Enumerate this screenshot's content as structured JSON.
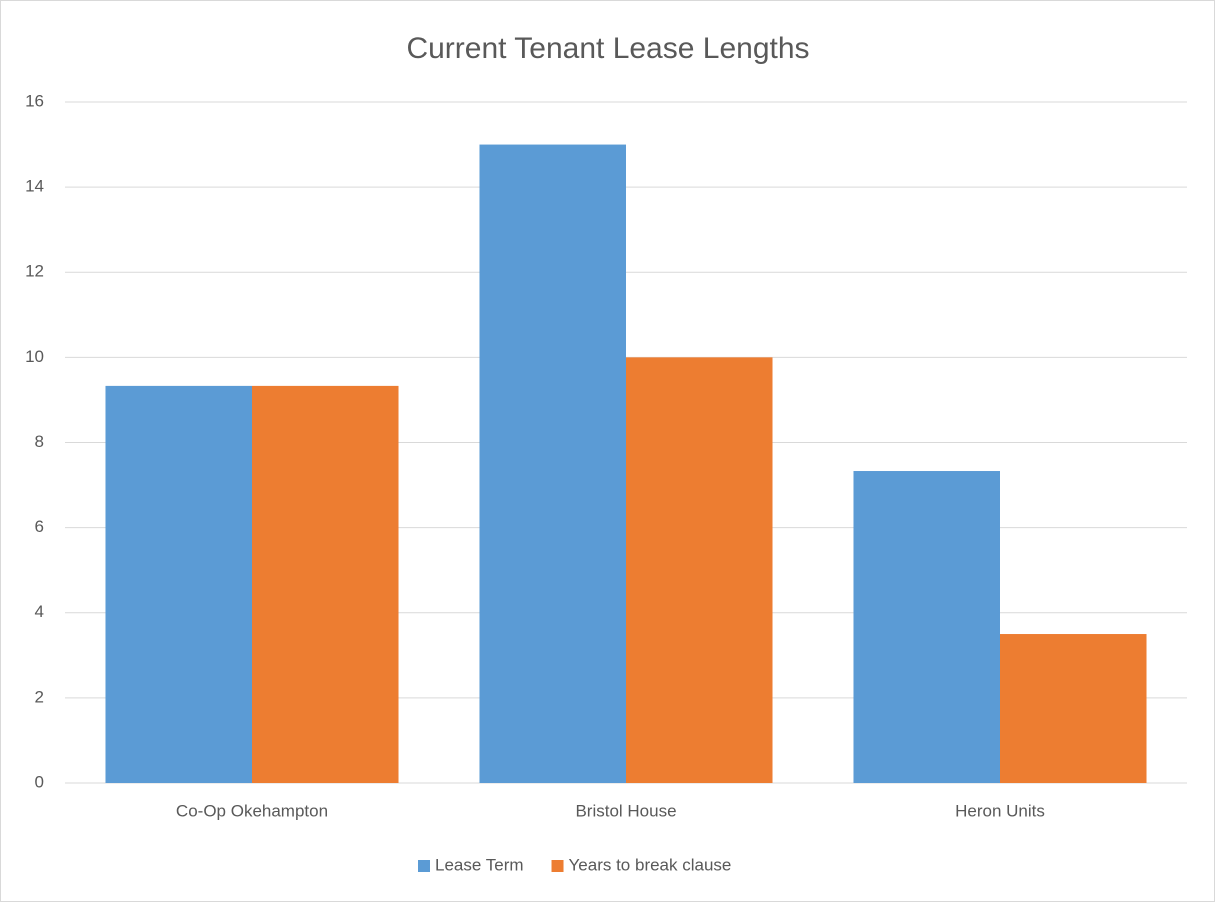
{
  "chart_data": {
    "type": "bar",
    "title": "Current Tenant Lease Lengths",
    "categories": [
      "Co-Op Okehampton",
      "Bristol House",
      "Heron Units"
    ],
    "series": [
      {
        "name": "Lease Term",
        "color": "#5b9bd5",
        "values": [
          9.33,
          15,
          7.33
        ]
      },
      {
        "name": "Years to break clause",
        "color": "#ed7d31",
        "values": [
          9.33,
          10,
          3.5
        ]
      }
    ],
    "ylim": [
      0,
      16
    ],
    "yticks": [
      0,
      2,
      4,
      6,
      8,
      10,
      12,
      14,
      16
    ],
    "grid": true,
    "legend": "bottom"
  }
}
